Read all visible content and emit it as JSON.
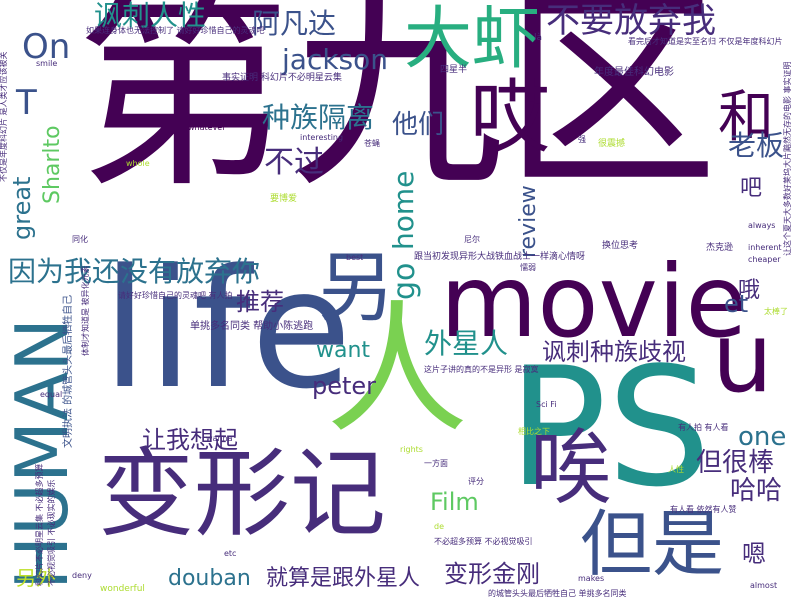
{
  "words": [
    {
      "text": "第九区",
      "color": "#440154"
    },
    {
      "text": "life",
      "color": "#3b528b"
    },
    {
      "text": "PS",
      "color": "#21918c"
    },
    {
      "text": "人",
      "color": "#7ad151"
    },
    {
      "text": "movie",
      "color": "#440154"
    },
    {
      "text": "变形记",
      "color": "#472d7b"
    },
    {
      "text": "HUMAN",
      "color": "#2c728e"
    },
    {
      "text": "大虾",
      "color": "#28ae80"
    },
    {
      "text": "哎",
      "color": "#440154"
    },
    {
      "text": "另",
      "color": "#3b528b"
    },
    {
      "text": "u",
      "color": "#440154"
    },
    {
      "text": "唉",
      "color": "#472d7b"
    },
    {
      "text": "但是",
      "color": "#3b528b"
    },
    {
      "text": "和",
      "color": "#440154"
    },
    {
      "text": "不要放弃我",
      "color": "#472d7b"
    },
    {
      "text": "讽刺人性",
      "color": "#21918c"
    },
    {
      "text": "阿凡达",
      "color": "#3b528b"
    },
    {
      "text": "因为我还没有放弃你",
      "color": "#2c728e"
    },
    {
      "text": "jackson",
      "color": "#3b528b"
    },
    {
      "text": "种族隔离",
      "color": "#2c728e"
    },
    {
      "text": "不过",
      "color": "#472d7b"
    },
    {
      "text": "他们",
      "color": "#3b528b"
    },
    {
      "text": "home",
      "color": "#21918c"
    },
    {
      "text": "老板",
      "color": "#3b528b"
    },
    {
      "text": "吧",
      "color": "#472d7b"
    },
    {
      "text": "review",
      "color": "#3b528b"
    },
    {
      "text": "great",
      "color": "#2c728e"
    },
    {
      "text": "Sharlto",
      "color": "#5ec962"
    },
    {
      "text": "On",
      "color": "#3b528b"
    },
    {
      "text": "T",
      "color": "#3b528b"
    },
    {
      "text": "go",
      "color": "#21918c"
    },
    {
      "text": "推荐",
      "color": "#472d7b"
    },
    {
      "text": "外星人",
      "color": "#21918c"
    },
    {
      "text": "want",
      "color": "#21918c"
    },
    {
      "text": "讽刺种族歧视",
      "color": "#472d7b"
    },
    {
      "text": "et",
      "color": "#3b528b"
    },
    {
      "text": "哦",
      "color": "#472d7b"
    },
    {
      "text": "peter",
      "color": "#472d7b"
    },
    {
      "text": "让我想起",
      "color": "#472d7b"
    },
    {
      "text": "one",
      "color": "#2c728e"
    },
    {
      "text": "但很棒",
      "color": "#472d7b"
    },
    {
      "text": "哈哈",
      "color": "#472d7b"
    },
    {
      "text": "Film",
      "color": "#5ec962"
    },
    {
      "text": "douban",
      "color": "#2c728e"
    },
    {
      "text": "就算是跟外星人",
      "color": "#472d7b"
    },
    {
      "text": "变形金刚",
      "color": "#472d7b"
    },
    {
      "text": "嗯",
      "color": "#472d7b"
    },
    {
      "text": "另外",
      "color": "#bddf26"
    },
    {
      "text": "跟当初发现异形大战铁血战士一样滴心情呀",
      "color": "#472d7b"
    },
    {
      "text": "单挑多名同类 帮助小陈逃跑",
      "color": "#472d7b"
    },
    {
      "text": "文明执法 的城管头头最后牺牲自己",
      "color": "#3b528b"
    },
    {
      "text": "事实证明 科幻片不必明星云集",
      "color": "#472d7b"
    },
    {
      "text": "年度最佳科幻电影",
      "color": "#472d7b"
    },
    {
      "text": "看完后才知道是实至名归 不仅是年度科幻片",
      "color": "#472d7b"
    },
    {
      "text": "不仅是年度科幻片 是人类才应该被关",
      "color": "#472d7b"
    },
    {
      "text": "让这个夏天大多数好莱坞大片黯然无存的电影 事实证明",
      "color": "#472d7b"
    },
    {
      "text": "请好好珍惜自己的灵魂吧 有人拍",
      "color": "#472d7b"
    },
    {
      "text": "换位思考",
      "color": "#472d7b"
    },
    {
      "text": "四星半",
      "color": "#472d7b"
    },
    {
      "text": "whatever",
      "color": "#440154"
    },
    {
      "text": "interesting",
      "color": "#472d7b"
    },
    {
      "text": "苍蝇",
      "color": "#472d7b"
    },
    {
      "text": "强",
      "color": "#472d7b"
    },
    {
      "text": "很震撼",
      "color": "#addc30"
    },
    {
      "text": "要博爱",
      "color": "#addc30"
    },
    {
      "text": "smile",
      "color": "#472d7b"
    },
    {
      "text": "同化",
      "color": "#472d7b"
    },
    {
      "text": "whole",
      "color": "#addc30"
    },
    {
      "text": "best",
      "color": "#472d7b"
    },
    {
      "text": "尼尔",
      "color": "#472d7b"
    },
    {
      "text": "懦弱",
      "color": "#472d7b"
    },
    {
      "text": "杰克逊",
      "color": "#472d7b"
    },
    {
      "text": "always",
      "color": "#472d7b"
    },
    {
      "text": "inherent",
      "color": "#472d7b"
    },
    {
      "text": "cheaper",
      "color": "#472d7b"
    },
    {
      "text": "太棒了",
      "color": "#addc30"
    },
    {
      "text": "这片子讲的真的不是异形 是寂寞",
      "color": "#472d7b"
    },
    {
      "text": "equal",
      "color": "#472d7b"
    },
    {
      "text": "Sci Fi",
      "color": "#472d7b"
    },
    {
      "text": "有人拍 有人看",
      "color": "#472d7b"
    },
    {
      "text": "相比之下",
      "color": "#addc30"
    },
    {
      "text": "人性",
      "color": "#addc30"
    },
    {
      "text": "有人看 依然有人赞",
      "color": "#472d7b"
    },
    {
      "text": "rights",
      "color": "#addc30"
    },
    {
      "text": "wanna",
      "color": "#472d7b"
    },
    {
      "text": "一方面",
      "color": "#472d7b"
    },
    {
      "text": "评分",
      "color": "#472d7b"
    },
    {
      "text": "de",
      "color": "#addc30"
    },
    {
      "text": "不必超多预算 不必视觉吸引",
      "color": "#472d7b"
    },
    {
      "text": "etc",
      "color": "#472d7b"
    },
    {
      "text": "deny",
      "color": "#472d7b"
    },
    {
      "text": "wonderful",
      "color": "#addc30"
    },
    {
      "text": "makes",
      "color": "#472d7b"
    },
    {
      "text": "的城管头头最后牺牲自己 单挑多名同类",
      "color": "#472d7b"
    },
    {
      "text": "almost",
      "color": "#472d7b"
    },
    {
      "text": "科幻片不必明星云集 不必超多预算",
      "color": "#472d7b"
    },
    {
      "text": "不必视觉吸引 不必现实的娱乐",
      "color": "#472d7b"
    },
    {
      "text": "体制才知道是 被异化元素",
      "color": "#472d7b"
    },
    {
      "text": "如果连身体也无法控制了 请好好珍惜自己的灵魂吧",
      "color": "#472d7b"
    },
    {
      "text": "là",
      "color": "#472d7b"
    }
  ]
}
